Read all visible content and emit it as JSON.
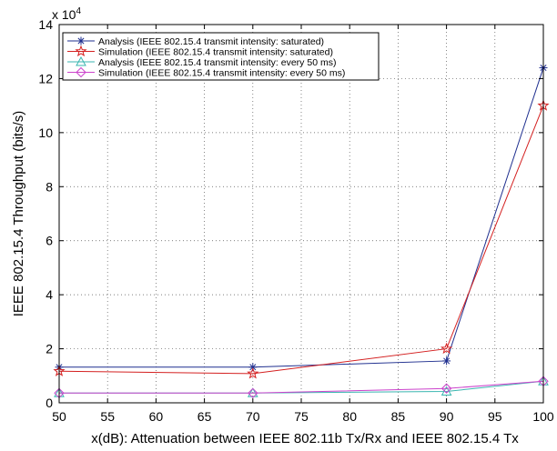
{
  "chart_data": {
    "type": "line",
    "xlabel": "x(dB): Attenuation between IEEE 802.11b Tx/Rx and IEEE 802.15.4 Tx",
    "ylabel": "IEEE 802.15.4 Throughput (bits/s)",
    "y_multiplier_label": "x 10",
    "y_multiplier_exponent": "4",
    "xlim": [
      50,
      100
    ],
    "ylim": [
      0,
      14
    ],
    "xticks": [
      50,
      55,
      60,
      65,
      70,
      75,
      80,
      85,
      90,
      95,
      100
    ],
    "yticks": [
      0,
      2,
      4,
      6,
      8,
      10,
      12,
      14
    ],
    "grid": true,
    "legend_position": "top-left",
    "x": [
      50,
      70,
      90,
      100
    ],
    "series": [
      {
        "name": "Analysis (IEEE 802.15.4 transmit intensity: saturated)",
        "color": "#1f2f8f",
        "marker": "asterisk",
        "values": [
          1.32,
          1.32,
          1.55,
          12.4
        ]
      },
      {
        "name": "Simulation (IEEE 802.15.4 transmit intensity: saturated)",
        "color": "#d42020",
        "marker": "star",
        "values": [
          1.17,
          1.08,
          2.0,
          11.0
        ]
      },
      {
        "name": "Analysis (IEEE 802.15.4 transmit intensity: every 50 ms)",
        "color": "#3ab6b0",
        "marker": "triangle",
        "values": [
          0.36,
          0.36,
          0.42,
          0.8
        ]
      },
      {
        "name": "Simulation (IEEE 802.15.4 transmit intensity: every 50 ms)",
        "color": "#cc44cc",
        "marker": "diamond",
        "values": [
          0.36,
          0.36,
          0.53,
          0.8
        ]
      }
    ]
  }
}
